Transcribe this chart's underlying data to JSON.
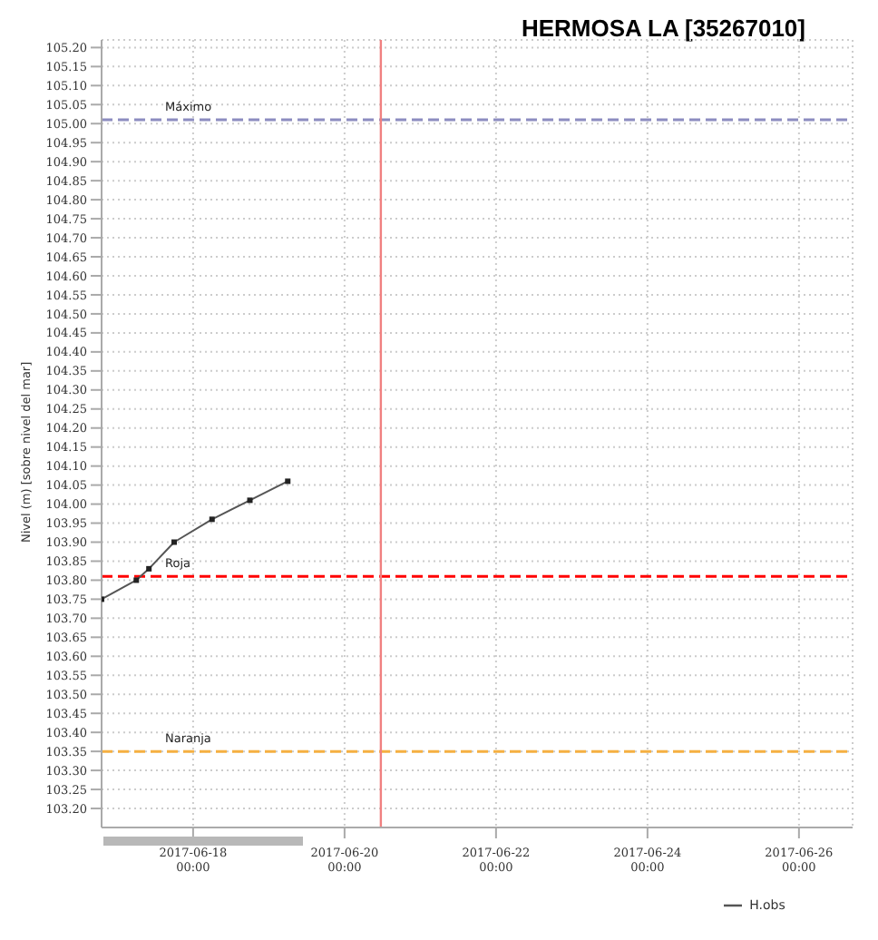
{
  "chart_data": {
    "type": "line",
    "title": "HERMOSA LA [35267010]",
    "ylabel": "Nivel (m)  [sobre nivel del mar]",
    "x": [
      "2017-06-16T19:00",
      "2017-06-17T06:00",
      "2017-06-17T10:00",
      "2017-06-17T18:00",
      "2017-06-18T06:00",
      "2017-06-18T18:00",
      "2017-06-19T06:00"
    ],
    "series": [
      {
        "name": "H.obs",
        "color": "#555555",
        "values": [
          103.75,
          103.8,
          103.83,
          103.9,
          103.96,
          104.01,
          104.06
        ]
      }
    ],
    "xlim": [
      "2017-06-16T19:00",
      "2017-06-26T17:00"
    ],
    "xticks": [
      {
        "value": "2017-06-18",
        "label": "2017-06-18 00:00"
      },
      {
        "value": "2017-06-20",
        "label": "2017-06-20 00:00"
      },
      {
        "value": "2017-06-22",
        "label": "2017-06-22 00:00"
      },
      {
        "value": "2017-06-24",
        "label": "2017-06-24 00:00"
      },
      {
        "value": "2017-06-26",
        "label": "2017-06-26 00:00"
      }
    ],
    "ylim": [
      103.15,
      105.22
    ],
    "yticks": [
      {
        "value": 103.2,
        "label": "103.20"
      },
      {
        "value": 103.25,
        "label": "103.25"
      },
      {
        "value": 103.3,
        "label": "103.30"
      },
      {
        "value": 103.35,
        "label": "103.35"
      },
      {
        "value": 103.4,
        "label": "103.40"
      },
      {
        "value": 103.45,
        "label": "103.45"
      },
      {
        "value": 103.5,
        "label": "103.50"
      },
      {
        "value": 103.55,
        "label": "103.55"
      },
      {
        "value": 103.6,
        "label": "103.60"
      },
      {
        "value": 103.65,
        "label": "103.65"
      },
      {
        "value": 103.7,
        "label": "103.70"
      },
      {
        "value": 103.75,
        "label": "103.75"
      },
      {
        "value": 103.8,
        "label": "103.80"
      },
      {
        "value": 103.85,
        "label": "103.85"
      },
      {
        "value": 103.9,
        "label": "103.90"
      },
      {
        "value": 103.95,
        "label": "103.95"
      },
      {
        "value": 104.0,
        "label": "104.00"
      },
      {
        "value": 104.05,
        "label": "104.05"
      },
      {
        "value": 104.1,
        "label": "104.10"
      },
      {
        "value": 104.15,
        "label": "104.15"
      },
      {
        "value": 104.2,
        "label": "104.20"
      },
      {
        "value": 104.25,
        "label": "104.25"
      },
      {
        "value": 104.3,
        "label": "104.30"
      },
      {
        "value": 104.35,
        "label": "104.35"
      },
      {
        "value": 104.4,
        "label": "104.40"
      },
      {
        "value": 104.45,
        "label": "104.45"
      },
      {
        "value": 104.5,
        "label": "104.50"
      },
      {
        "value": 104.55,
        "label": "104.55"
      },
      {
        "value": 104.6,
        "label": "104.60"
      },
      {
        "value": 104.65,
        "label": "104.65"
      },
      {
        "value": 104.7,
        "label": "104.70"
      },
      {
        "value": 104.75,
        "label": "104.75"
      },
      {
        "value": 104.8,
        "label": "104.80"
      },
      {
        "value": 104.85,
        "label": "104.85"
      },
      {
        "value": 104.9,
        "label": "104.90"
      },
      {
        "value": 104.95,
        "label": "104.95"
      },
      {
        "value": 105.0,
        "label": "105.00"
      },
      {
        "value": 105.05,
        "label": "105.05"
      },
      {
        "value": 105.1,
        "label": "105.10"
      },
      {
        "value": 105.15,
        "label": "105.15"
      },
      {
        "value": 105.2,
        "label": "105.20"
      }
    ],
    "ref_lines": [
      {
        "axis": "y",
        "value": 105.01,
        "label": "Máximo",
        "color": "#8c8cc0",
        "line_style": "dashed"
      },
      {
        "axis": "y",
        "value": 103.81,
        "label": "Roja",
        "color": "#ff0000",
        "line_style": "dashed"
      },
      {
        "axis": "y",
        "value": 103.35,
        "label": "Naranja",
        "color": "#f5b041",
        "line_style": "dashed"
      },
      {
        "axis": "x",
        "value": "2017-06-20T11:30",
        "color": "#f08080",
        "line_style": "solid"
      }
    ],
    "grid": true,
    "legend": "bottom",
    "marker": "square",
    "line_style": "solid"
  }
}
